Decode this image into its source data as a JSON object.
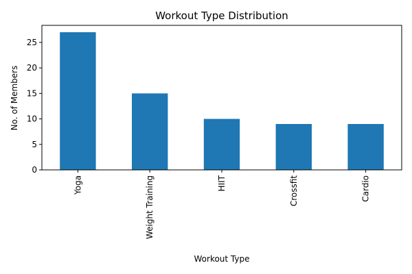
{
  "chart_data": {
    "type": "bar",
    "title": "Workout Type Distribution",
    "xlabel": "Workout Type",
    "ylabel": "No. of Members",
    "categories": [
      "Yoga",
      "Weight Training",
      "HIIT",
      "Crossfit",
      "Cardio"
    ],
    "values": [
      27,
      15,
      10,
      9,
      9
    ],
    "ylim": [
      0,
      28.35
    ],
    "yticks": [
      0,
      5,
      10,
      15,
      20,
      25
    ],
    "bar_color": "#1f77b4",
    "grid": false,
    "legend": "none"
  }
}
